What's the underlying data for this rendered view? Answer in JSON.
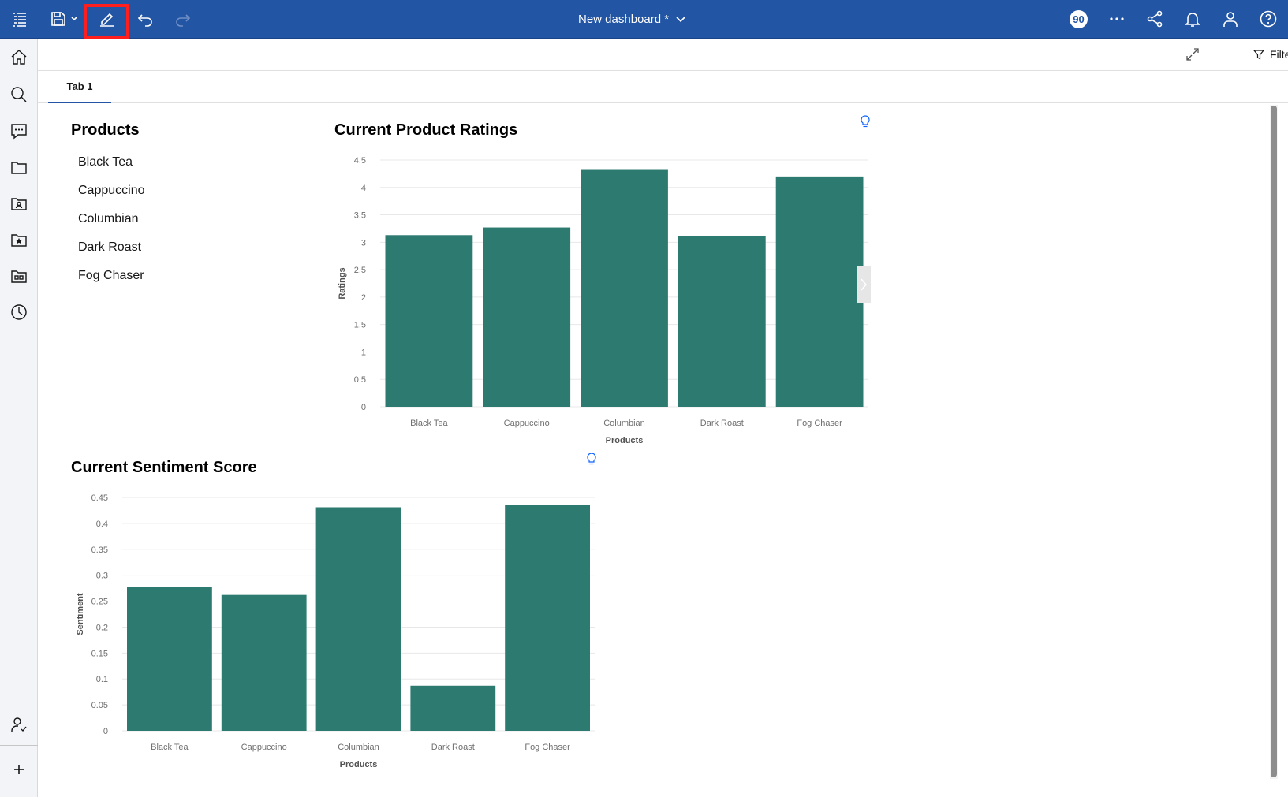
{
  "header": {
    "title": "New dashboard *",
    "badge_count": "90"
  },
  "subbar": {
    "filters_label": "Filters"
  },
  "tabs": [
    {
      "label": "Tab 1"
    }
  ],
  "products_widget": {
    "title": "Products",
    "items": [
      "Black Tea",
      "Cappuccino",
      "Columbian",
      "Dark Roast",
      "Fog Chaser"
    ]
  },
  "colors": {
    "header_bg": "#2255a4",
    "bar": "#2d7a70",
    "highlight": "#ff1e1e"
  },
  "chart_data": [
    {
      "id": "ratings",
      "type": "bar",
      "title": "Current Product Ratings",
      "xlabel": "Products",
      "ylabel": "Ratings",
      "categories": [
        "Black Tea",
        "Cappuccino",
        "Columbian",
        "Dark Roast",
        "Fog Chaser"
      ],
      "values": [
        3.13,
        3.27,
        4.32,
        3.12,
        4.2
      ],
      "ylim": [
        0,
        4.5
      ],
      "yticks": [
        "0",
        "0.5",
        "1",
        "1.5",
        "2",
        "2.5",
        "3",
        "3.5",
        "4",
        "4.5"
      ]
    },
    {
      "id": "sentiment",
      "type": "bar",
      "title": "Current Sentiment Score",
      "xlabel": "Products",
      "ylabel": "Sentiment",
      "categories": [
        "Black Tea",
        "Cappuccino",
        "Columbian",
        "Dark Roast",
        "Fog Chaser"
      ],
      "values": [
        0.278,
        0.262,
        0.431,
        0.087,
        0.436
      ],
      "ylim": [
        0,
        0.45
      ],
      "yticks": [
        "0",
        "0.05",
        "0.1",
        "0.15",
        "0.2",
        "0.25",
        "0.3",
        "0.35",
        "0.4",
        "0.45"
      ]
    }
  ]
}
